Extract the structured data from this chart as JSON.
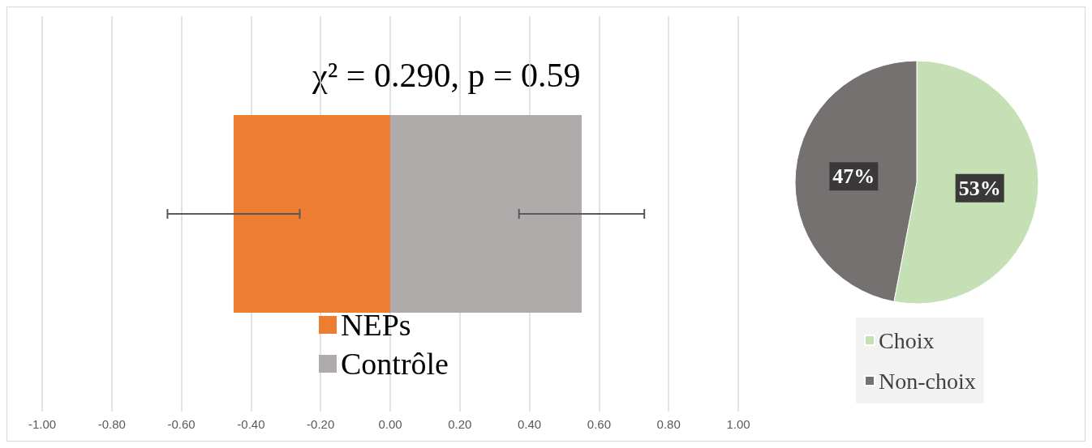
{
  "chart_data": [
    {
      "type": "bar",
      "orientation": "horizontal",
      "stacked": true,
      "categories": [
        null
      ],
      "series": [
        {
          "name": "NEPs",
          "color": "#ed7d31",
          "values": [
            -0.45
          ],
          "errors": [
            0.19
          ]
        },
        {
          "name": "Contrôle",
          "color": "#afabab",
          "values": [
            0.55
          ],
          "errors": [
            0.18
          ]
        }
      ],
      "xlim": [
        -1,
        1
      ],
      "xticks": [
        {
          "value": -1,
          "label": "-1.00"
        },
        {
          "value": -0.8,
          "label": "-0.80"
        },
        {
          "value": -0.6,
          "label": "-0.60"
        },
        {
          "value": -0.4,
          "label": "-0.40"
        },
        {
          "value": -0.2,
          "label": "-0.20"
        },
        {
          "value": 0,
          "label": "0.00"
        },
        {
          "value": 0.2,
          "label": "0.20"
        },
        {
          "value": 0.4,
          "label": "0.40"
        },
        {
          "value": 0.6,
          "label": "0.60"
        },
        {
          "value": 0.8,
          "label": "0.80"
        },
        {
          "value": 1,
          "label": "1.00"
        }
      ],
      "grid": "x",
      "legend": "bottom",
      "annotations": [
        "χ² = 0.290, p = 0.59"
      ]
    },
    {
      "type": "pie",
      "categories": [
        "Choix",
        "Non-choix"
      ],
      "values": [
        53,
        47
      ],
      "colors": [
        "#c5e0b4",
        "#767171"
      ],
      "value_labels": [
        "53%",
        "47%"
      ],
      "legend": "bottom"
    }
  ]
}
